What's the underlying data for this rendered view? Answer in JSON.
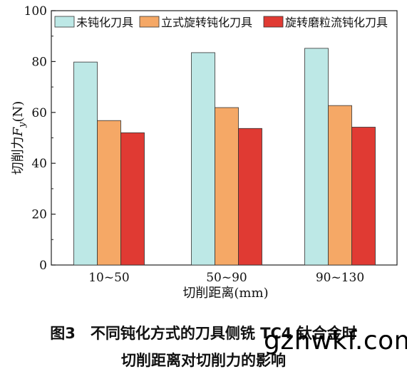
{
  "chart_data": {
    "type": "bar",
    "categories": [
      "10~50",
      "50~90",
      "90~130"
    ],
    "series": [
      {
        "name": "未钝化刀具",
        "values": [
          79.8,
          83.5,
          85.2
        ],
        "color": "#bde8e6"
      },
      {
        "name": "立式旋转钝化刀具",
        "values": [
          56.8,
          61.9,
          62.7
        ],
        "color": "#f5a866"
      },
      {
        "name": "旋转磨粒流钝化刀具",
        "values": [
          52.0,
          53.7,
          54.2
        ],
        "color": "#e03a33"
      }
    ],
    "xlabel": "切削距离(mm)",
    "ylabel": "切削力F_y(N)",
    "ylim": [
      0,
      100
    ],
    "yticks": [
      0,
      20,
      40,
      60,
      80,
      100
    ],
    "legend_position": "top",
    "grid": false
  },
  "caption": {
    "line1": "图3　不同钝化方式的刀具侧铣 TC4 钛合金时",
    "line2": "切削距离对切削力的影响"
  },
  "watermark": "gzhwkf.com"
}
